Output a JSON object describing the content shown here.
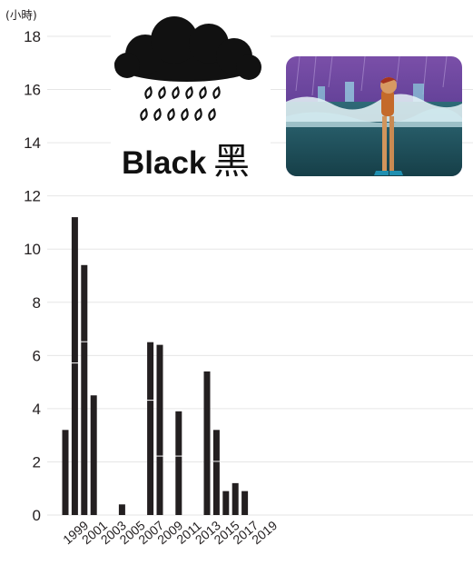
{
  "chart_data": {
    "type": "bar",
    "unit": "(小時)",
    "ylim": [
      0,
      18
    ],
    "y_ticks": [
      0,
      2,
      4,
      6,
      8,
      10,
      12,
      14,
      16,
      18
    ],
    "x_ticks": [
      "1999",
      "2001",
      "2003",
      "2005",
      "2007",
      "2009",
      "2011",
      "2013",
      "2015",
      "2017",
      "2019"
    ],
    "grid": "horizontal",
    "colors": {
      "bar": "#231f20",
      "grid": "#e6e6e6",
      "text": "#231f20"
    },
    "bars": [
      {
        "year": 1998,
        "value": 3.2,
        "segments": [
          3.2
        ]
      },
      {
        "year": 1999,
        "value": 11.2,
        "segments": [
          5.7,
          5.5
        ]
      },
      {
        "year": 2000,
        "value": 9.4,
        "segments": [
          6.5,
          2.9
        ]
      },
      {
        "year": 2001,
        "value": 4.5,
        "segments": [
          4.5
        ]
      },
      {
        "year": 2004,
        "value": 0.4,
        "segments": [
          0.4
        ]
      },
      {
        "year": 2007,
        "value": 6.5,
        "segments": [
          4.3,
          2.2
        ]
      },
      {
        "year": 2008,
        "value": 6.4,
        "segments": [
          2.2,
          4.2
        ]
      },
      {
        "year": 2010,
        "value": 3.9,
        "segments": [
          2.2,
          1.7
        ]
      },
      {
        "year": 2013,
        "value": 5.4,
        "segments": [
          5.4
        ]
      },
      {
        "year": 2014,
        "value": 3.2,
        "segments": [
          2.0,
          1.2
        ]
      },
      {
        "year": 2015,
        "value": 0.9,
        "segments": [
          0.9
        ]
      },
      {
        "year": 2016,
        "value": 1.2,
        "segments": [
          1.2
        ]
      },
      {
        "year": 2017,
        "value": 0.9,
        "segments": [
          0.9
        ]
      }
    ],
    "illustrations": {
      "black_rain_sign": {
        "label_en": "Black",
        "label_zh": "黑",
        "icon": "storm-cloud-rain-icon"
      },
      "flood_scene": {
        "icon": "person-wading-flood-icon"
      }
    }
  }
}
